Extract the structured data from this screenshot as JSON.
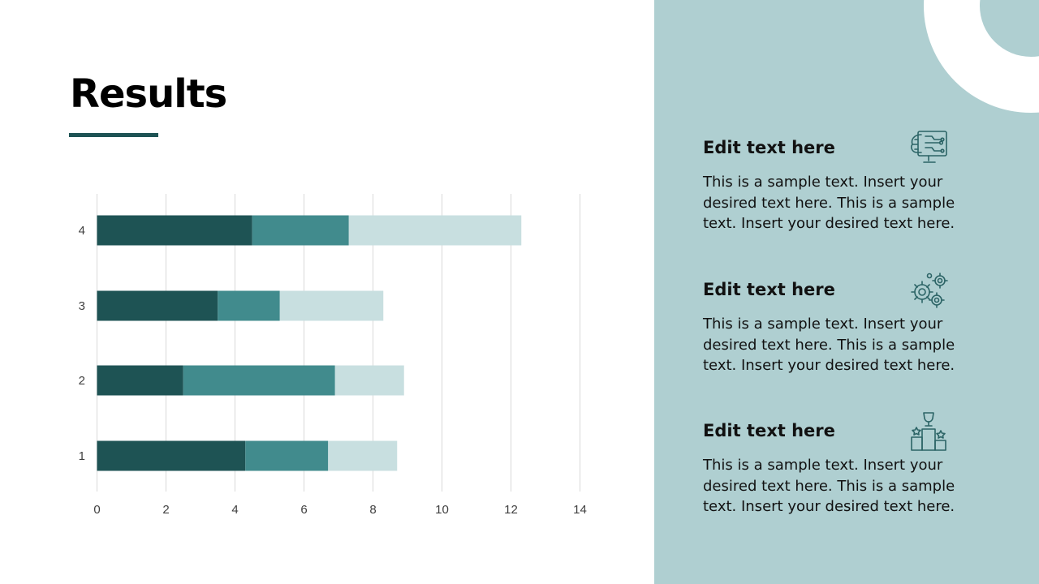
{
  "slide": {
    "title": "Results"
  },
  "chart_data": {
    "type": "bar",
    "orientation": "horizontal",
    "stacked": true,
    "categories": [
      "1",
      "2",
      "3",
      "4"
    ],
    "series": [
      {
        "color": "#1e5354",
        "values": [
          4.3,
          2.5,
          3.5,
          4.5
        ]
      },
      {
        "color": "#418b8d",
        "values": [
          2.4,
          4.4,
          1.8,
          2.8
        ]
      },
      {
        "color": "#c8dfe0",
        "values": [
          2.0,
          2.0,
          3.0,
          5.0
        ]
      }
    ],
    "xlim": [
      0,
      14
    ],
    "xticks": [
      "0",
      "2",
      "4",
      "6",
      "8",
      "10",
      "12",
      "14"
    ],
    "grid": true,
    "legend": "none"
  },
  "panel": {
    "items": [
      {
        "heading": "Edit  text here",
        "body": "This is a sample text. Insert your desired text here. This is a sample text. Insert your desired text here.",
        "icon": "digital-brain-monitor-icon"
      },
      {
        "heading": "Edit  text here",
        "body": "This is a sample text. Insert your desired text here. This is a sample text. Insert your desired text here.",
        "icon": "gears-icon"
      },
      {
        "heading": "Edit  text here",
        "body": "This is a sample text. Insert your desired text here. This is a sample text. Insert your desired text here.",
        "icon": "trophy-podium-icon"
      }
    ]
  },
  "colors": {
    "accent_dark": "#1e5354",
    "accent_mid": "#418b8d",
    "accent_light": "#c8dfe0",
    "panel_bg": "#afcfd1",
    "icon_stroke": "#2c6466"
  }
}
